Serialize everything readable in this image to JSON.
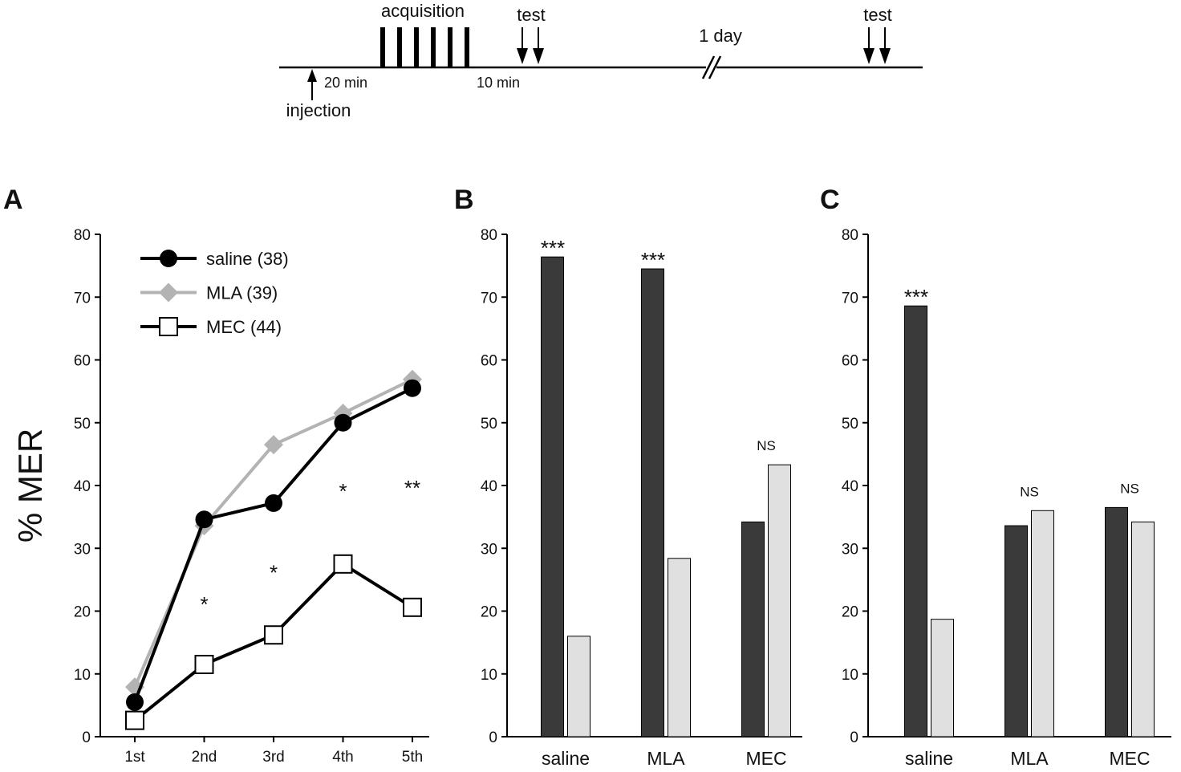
{
  "timeline": {
    "acquisition": "acquisition",
    "test1": "test",
    "test2": "test",
    "day": "1 day",
    "min20": "20 min",
    "min10": "10 min",
    "injection": "injection",
    "acquisition_trials": 6
  },
  "colors": {
    "saline": "#000000",
    "mla": "#b3b3b3",
    "mec_fill": "#ffffff",
    "dark_bar": "#3a3a3a",
    "light_bar": "#e0e0e0"
  },
  "chart_data": [
    {
      "panel": "A",
      "type": "line",
      "ylabel": "% MER",
      "ylim": [
        0,
        80
      ],
      "yticks": [
        0,
        10,
        20,
        30,
        40,
        50,
        60,
        70,
        80
      ],
      "categories": [
        "1st",
        "2nd",
        "3rd",
        "4th",
        "5th"
      ],
      "series": [
        {
          "name": "saline (38)",
          "values": [
            5.5,
            34.6,
            37.2,
            50,
            55.5
          ]
        },
        {
          "name": "MLA (39)",
          "values": [
            7.9,
            33.6,
            46.5,
            51.5,
            56.9
          ]
        },
        {
          "name": "MEC (44)",
          "values": [
            2.6,
            11.5,
            16.2,
            27.5,
            20.6
          ]
        }
      ],
      "annotations": [
        "",
        "*",
        "*",
        "*",
        "**"
      ],
      "annotation_values": [
        0,
        22,
        27,
        40,
        40.5
      ]
    },
    {
      "panel": "B",
      "type": "bar",
      "ylim": [
        0,
        80
      ],
      "yticks": [
        0,
        10,
        20,
        30,
        40,
        50,
        60,
        70,
        80
      ],
      "categories": [
        "saline",
        "MLA",
        "MEC"
      ],
      "series": [
        {
          "name": "dark",
          "values": [
            76.4,
            74.5,
            34.2
          ]
        },
        {
          "name": "light",
          "values": [
            16,
            28.4,
            43.3
          ]
        }
      ],
      "annotations": [
        "***",
        "***",
        "NS"
      ]
    },
    {
      "panel": "C",
      "type": "bar",
      "ylim": [
        0,
        80
      ],
      "yticks": [
        0,
        10,
        20,
        30,
        40,
        50,
        60,
        70,
        80
      ],
      "categories": [
        "saline",
        "MLA",
        "MEC"
      ],
      "series": [
        {
          "name": "dark",
          "values": [
            68.6,
            33.6,
            36.5
          ]
        },
        {
          "name": "light",
          "values": [
            18.7,
            36,
            34.2
          ]
        }
      ],
      "annotations": [
        "***",
        "NS",
        "NS"
      ]
    }
  ]
}
